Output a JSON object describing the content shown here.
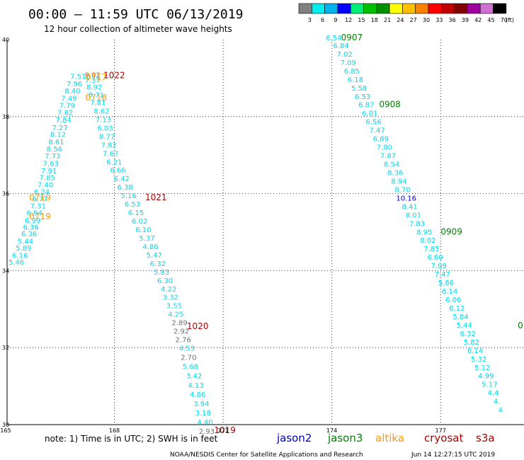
{
  "header": {
    "title": "00:00 – 11:59 UTC 06/13/2019",
    "subtitle": "12 hour collection of altimeter wave heights"
  },
  "legend": {
    "unit": "(ft)",
    "bins": [
      {
        "label": "3",
        "color": "#808080"
      },
      {
        "label": "6",
        "color": "#00eeee"
      },
      {
        "label": "9",
        "color": "#00b2ee"
      },
      {
        "label": "12",
        "color": "#0000ff"
      },
      {
        "label": "15",
        "color": "#00ee76"
      },
      {
        "label": "18",
        "color": "#00c000"
      },
      {
        "label": "21",
        "color": "#009000"
      },
      {
        "label": "24",
        "color": "#ffff00"
      },
      {
        "label": "27",
        "color": "#ffc000"
      },
      {
        "label": "30",
        "color": "#ff8000"
      },
      {
        "label": "33",
        "color": "#ff0000"
      },
      {
        "label": "36",
        "color": "#c00000"
      },
      {
        "label": "39",
        "color": "#800000"
      },
      {
        "label": "42",
        "color": "#a000a0"
      },
      {
        "label": "45",
        "color": "#d070d0"
      },
      {
        "label": "70",
        "color": "#000000"
      }
    ]
  },
  "map": {
    "lon_ticks": [
      "165",
      "168",
      "171",
      "174",
      "177"
    ],
    "lat_ticks": [
      "40",
      "38",
      "36",
      "34",
      "32",
      "30"
    ],
    "lon_range": [
      165,
      179.2
    ],
    "lat_range": [
      30,
      40.1
    ]
  },
  "colors": {
    "cyan": "#00d8e8",
    "blue": "#0000cc",
    "gray": "#707070",
    "jason2": "#0000cc",
    "jason3": "#008000",
    "altika": "#ff9900",
    "cryosat": "#aa0000",
    "s3a": "#aa0000"
  },
  "tracks": [
    {
      "id": "track-1",
      "points": [
        {
          "lon": 165.3,
          "lat": 34.15,
          "text": "5.46",
          "c": "cyan"
        },
        {
          "lon": 165.4,
          "lat": 34.33,
          "text": "6.16",
          "c": "cyan"
        },
        {
          "lon": 165.5,
          "lat": 34.52,
          "text": "5.89",
          "c": "cyan"
        },
        {
          "lon": 165.55,
          "lat": 34.7,
          "text": "5.44",
          "c": "cyan"
        },
        {
          "lon": 165.65,
          "lat": 34.89,
          "text": "6.36",
          "c": "cyan"
        },
        {
          "lon": 165.7,
          "lat": 35.06,
          "text": "6.36",
          "c": "cyan"
        },
        {
          "lon": 165.75,
          "lat": 35.24,
          "text": "6.99",
          "c": "cyan"
        },
        {
          "lon": 165.8,
          "lat": 35.43,
          "text": "6.94",
          "c": "cyan"
        },
        {
          "lon": 165.9,
          "lat": 35.62,
          "text": "7.31",
          "c": "cyan"
        },
        {
          "lon": 165.95,
          "lat": 35.8,
          "text": "6.77",
          "c": "cyan"
        },
        {
          "lon": 166.0,
          "lat": 35.98,
          "text": "6.24",
          "c": "cyan"
        },
        {
          "lon": 166.1,
          "lat": 36.17,
          "text": "7.40",
          "c": "cyan"
        },
        {
          "lon": 166.15,
          "lat": 36.35,
          "text": "7.85",
          "c": "cyan"
        },
        {
          "lon": 166.2,
          "lat": 36.53,
          "text": "7.91",
          "c": "cyan"
        },
        {
          "lon": 166.25,
          "lat": 36.72,
          "text": "7.63",
          "c": "cyan"
        },
        {
          "lon": 166.3,
          "lat": 36.91,
          "text": "7.73",
          "c": "cyan"
        },
        {
          "lon": 166.35,
          "lat": 37.1,
          "text": "8.56",
          "c": "cyan"
        },
        {
          "lon": 166.4,
          "lat": 37.28,
          "text": "8.61",
          "c": "cyan"
        },
        {
          "lon": 166.45,
          "lat": 37.47,
          "text": "8.12",
          "c": "cyan"
        },
        {
          "lon": 166.5,
          "lat": 37.65,
          "text": "7.27",
          "c": "cyan"
        },
        {
          "lon": 166.6,
          "lat": 37.85,
          "text": "7.84",
          "c": "cyan"
        },
        {
          "lon": 166.65,
          "lat": 38.04,
          "text": "7.82",
          "c": "cyan"
        },
        {
          "lon": 166.7,
          "lat": 38.23,
          "text": "7.79",
          "c": "cyan"
        },
        {
          "lon": 166.75,
          "lat": 38.41,
          "text": "7.49",
          "c": "cyan"
        },
        {
          "lon": 166.85,
          "lat": 38.6,
          "text": "8.40",
          "c": "cyan"
        },
        {
          "lon": 166.9,
          "lat": 38.79,
          "text": "7.96",
          "c": "cyan"
        },
        {
          "lon": 167.0,
          "lat": 38.98,
          "text": "7.51",
          "c": "cyan"
        },
        {
          "lon": 167.4,
          "lat": 39.02,
          "text": "9.02",
          "c": "gray"
        }
      ]
    },
    {
      "id": "track-2",
      "points": [
        {
          "lon": 167.4,
          "lat": 38.88,
          "text": "7.37",
          "c": "cyan"
        },
        {
          "lon": 167.45,
          "lat": 38.7,
          "text": "8.92",
          "c": "cyan"
        },
        {
          "lon": 167.5,
          "lat": 38.5,
          "text": "8.71",
          "c": "cyan"
        },
        {
          "lon": 167.55,
          "lat": 38.3,
          "text": "7.81",
          "c": "cyan"
        },
        {
          "lon": 167.65,
          "lat": 38.08,
          "text": "8.62",
          "c": "cyan"
        },
        {
          "lon": 167.7,
          "lat": 37.86,
          "text": "7.13",
          "c": "cyan"
        },
        {
          "lon": 167.75,
          "lat": 37.64,
          "text": "6.03",
          "c": "cyan"
        },
        {
          "lon": 167.8,
          "lat": 37.42,
          "text": "8.77",
          "c": "cyan"
        },
        {
          "lon": 167.85,
          "lat": 37.2,
          "text": "7.82",
          "c": "cyan"
        },
        {
          "lon": 167.9,
          "lat": 36.98,
          "text": "7.67",
          "c": "cyan"
        },
        {
          "lon": 168.0,
          "lat": 36.76,
          "text": "6.21",
          "c": "cyan"
        },
        {
          "lon": 168.1,
          "lat": 36.54,
          "text": "6.66",
          "c": "cyan"
        },
        {
          "lon": 168.2,
          "lat": 36.32,
          "text": "6.42",
          "c": "cyan"
        },
        {
          "lon": 168.3,
          "lat": 36.1,
          "text": "6.38",
          "c": "cyan"
        },
        {
          "lon": 168.4,
          "lat": 35.88,
          "text": "5.16",
          "c": "cyan"
        },
        {
          "lon": 168.5,
          "lat": 35.66,
          "text": "6.53",
          "c": "cyan"
        },
        {
          "lon": 168.6,
          "lat": 35.44,
          "text": "6.15",
          "c": "cyan"
        },
        {
          "lon": 168.7,
          "lat": 35.22,
          "text": "6.02",
          "c": "cyan"
        },
        {
          "lon": 168.8,
          "lat": 35.0,
          "text": "6.10",
          "c": "cyan"
        },
        {
          "lon": 168.9,
          "lat": 34.78,
          "text": "5.37",
          "c": "cyan"
        },
        {
          "lon": 169.0,
          "lat": 34.56,
          "text": "4.86",
          "c": "cyan"
        },
        {
          "lon": 169.1,
          "lat": 34.34,
          "text": "5.47",
          "c": "cyan"
        },
        {
          "lon": 169.2,
          "lat": 34.12,
          "text": "6.32",
          "c": "cyan"
        },
        {
          "lon": 169.3,
          "lat": 33.9,
          "text": "5.83",
          "c": "cyan"
        },
        {
          "lon": 169.4,
          "lat": 33.68,
          "text": "6.30",
          "c": "cyan"
        },
        {
          "lon": 169.5,
          "lat": 33.46,
          "text": "4.22",
          "c": "cyan"
        },
        {
          "lon": 169.55,
          "lat": 33.24,
          "text": "3.32",
          "c": "cyan"
        },
        {
          "lon": 169.65,
          "lat": 33.02,
          "text": "3.55",
          "c": "cyan"
        },
        {
          "lon": 169.7,
          "lat": 32.8,
          "text": "4.25",
          "c": "cyan"
        },
        {
          "lon": 169.8,
          "lat": 32.58,
          "text": "2.89",
          "c": "gray"
        },
        {
          "lon": 169.85,
          "lat": 32.36,
          "text": "2.92",
          "c": "gray"
        },
        {
          "lon": 169.9,
          "lat": 32.14,
          "text": "2.76",
          "c": "gray"
        },
        {
          "lon": 170.0,
          "lat": 31.92,
          "text": "4.53",
          "c": "cyan"
        },
        {
          "lon": 170.05,
          "lat": 31.68,
          "text": "2.70",
          "c": "gray"
        },
        {
          "lon": 170.1,
          "lat": 31.44,
          "text": "5.68",
          "c": "cyan"
        },
        {
          "lon": 170.2,
          "lat": 31.2,
          "text": "3.42",
          "c": "cyan"
        },
        {
          "lon": 170.25,
          "lat": 30.96,
          "text": "4.13",
          "c": "cyan"
        },
        {
          "lon": 170.3,
          "lat": 30.72,
          "text": "4.86",
          "c": "cyan"
        },
        {
          "lon": 170.4,
          "lat": 30.48,
          "text": "3.94",
          "c": "cyan"
        },
        {
          "lon": 170.45,
          "lat": 30.24,
          "text": "3.18",
          "c": "cyan"
        },
        {
          "lon": 170.5,
          "lat": 30.0,
          "text": "4.40",
          "c": "cyan"
        },
        {
          "lon": 170.55,
          "lat": 29.76,
          "text": "2.93",
          "c": "gray"
        }
      ]
    },
    {
      "id": "track-3",
      "points": [
        {
          "lon": 174.05,
          "lat": 39.98,
          "text": "6.54",
          "c": "cyan"
        },
        {
          "lon": 174.25,
          "lat": 39.78,
          "text": "6.84",
          "c": "cyan"
        },
        {
          "lon": 174.35,
          "lat": 39.56,
          "text": "7.02",
          "c": "cyan"
        },
        {
          "lon": 174.45,
          "lat": 39.34,
          "text": "7.09",
          "c": "cyan"
        },
        {
          "lon": 174.55,
          "lat": 39.12,
          "text": "6.85",
          "c": "cyan"
        },
        {
          "lon": 174.65,
          "lat": 38.9,
          "text": "6.18",
          "c": "cyan"
        },
        {
          "lon": 174.75,
          "lat": 38.68,
          "text": "5.58",
          "c": "cyan"
        },
        {
          "lon": 174.85,
          "lat": 38.46,
          "text": "6.53",
          "c": "cyan"
        },
        {
          "lon": 174.95,
          "lat": 38.24,
          "text": "6.87",
          "c": "cyan"
        },
        {
          "lon": 175.05,
          "lat": 38.02,
          "text": "6.01",
          "c": "cyan"
        },
        {
          "lon": 175.15,
          "lat": 37.8,
          "text": "6.56",
          "c": "cyan"
        },
        {
          "lon": 175.25,
          "lat": 37.58,
          "text": "7.47",
          "c": "cyan"
        },
        {
          "lon": 175.35,
          "lat": 37.36,
          "text": "6.89",
          "c": "cyan"
        },
        {
          "lon": 175.45,
          "lat": 37.14,
          "text": "7.80",
          "c": "cyan"
        },
        {
          "lon": 175.55,
          "lat": 36.92,
          "text": "7.87",
          "c": "cyan"
        },
        {
          "lon": 175.65,
          "lat": 36.7,
          "text": "8.54",
          "c": "cyan"
        },
        {
          "lon": 175.75,
          "lat": 36.48,
          "text": "8.36",
          "c": "cyan"
        },
        {
          "lon": 175.85,
          "lat": 36.26,
          "text": "8.94",
          "c": "cyan"
        },
        {
          "lon": 175.95,
          "lat": 36.04,
          "text": "8.70",
          "c": "cyan"
        },
        {
          "lon": 176.05,
          "lat": 35.82,
          "text": "10.16",
          "c": "blue"
        },
        {
          "lon": 176.15,
          "lat": 35.6,
          "text": "8.41",
          "c": "cyan"
        },
        {
          "lon": 176.25,
          "lat": 35.38,
          "text": "8.01",
          "c": "cyan"
        },
        {
          "lon": 176.35,
          "lat": 35.16,
          "text": "7.83",
          "c": "cyan"
        },
        {
          "lon": 176.55,
          "lat": 34.94,
          "text": "8.95",
          "c": "cyan"
        },
        {
          "lon": 176.65,
          "lat": 34.72,
          "text": "8.02",
          "c": "cyan"
        },
        {
          "lon": 176.75,
          "lat": 34.5,
          "text": "7.85",
          "c": "cyan"
        },
        {
          "lon": 176.85,
          "lat": 34.28,
          "text": "6.60",
          "c": "cyan"
        },
        {
          "lon": 176.95,
          "lat": 34.06,
          "text": "7.09",
          "c": "cyan"
        },
        {
          "lon": 177.05,
          "lat": 33.84,
          "text": "7.47",
          "c": "cyan"
        },
        {
          "lon": 177.15,
          "lat": 33.62,
          "text": "5.86",
          "c": "cyan"
        },
        {
          "lon": 177.25,
          "lat": 33.4,
          "text": "6.14",
          "c": "cyan"
        },
        {
          "lon": 177.35,
          "lat": 33.18,
          "text": "6.06",
          "c": "cyan"
        },
        {
          "lon": 177.45,
          "lat": 32.96,
          "text": "6.12",
          "c": "cyan"
        },
        {
          "lon": 177.55,
          "lat": 32.74,
          "text": "5.84",
          "c": "cyan"
        },
        {
          "lon": 177.65,
          "lat": 32.52,
          "text": "5.44",
          "c": "cyan"
        },
        {
          "lon": 177.75,
          "lat": 32.3,
          "text": "6.32",
          "c": "cyan"
        },
        {
          "lon": 177.85,
          "lat": 32.08,
          "text": "5.82",
          "c": "cyan"
        },
        {
          "lon": 177.95,
          "lat": 31.86,
          "text": "6.14",
          "c": "cyan"
        },
        {
          "lon": 178.05,
          "lat": 31.64,
          "text": "5.32",
          "c": "cyan"
        },
        {
          "lon": 178.15,
          "lat": 31.42,
          "text": "5.12",
          "c": "cyan"
        },
        {
          "lon": 178.25,
          "lat": 31.2,
          "text": "4.99",
          "c": "cyan"
        },
        {
          "lon": 178.35,
          "lat": 30.98,
          "text": "5.17",
          "c": "cyan"
        },
        {
          "lon": 178.45,
          "lat": 30.76,
          "text": "4.4",
          "c": "cyan"
        },
        {
          "lon": 178.55,
          "lat": 30.54,
          "text": "4.",
          "c": "cyan"
        },
        {
          "lon": 178.65,
          "lat": 30.32,
          "text": "4",
          "c": "cyan"
        }
      ]
    }
  ],
  "pass_labels": [
    {
      "lon": 168.0,
      "lat": 39.0,
      "text": "1022",
      "c": "cryosat"
    },
    {
      "lon": 167.5,
      "lat": 38.95,
      "text": "0717",
      "c": "altika"
    },
    {
      "lon": 167.5,
      "lat": 38.42,
      "text": "0718",
      "c": "altika"
    },
    {
      "lon": 169.15,
      "lat": 35.83,
      "text": "1021",
      "c": "cryosat"
    },
    {
      "lon": 165.95,
      "lat": 35.82,
      "text": "0719",
      "c": "altika"
    },
    {
      "lon": 165.95,
      "lat": 35.33,
      "text": "0719",
      "c": "altika"
    },
    {
      "lon": 170.3,
      "lat": 32.48,
      "text": "1020",
      "c": "cryosat"
    },
    {
      "lon": 171.05,
      "lat": 29.78,
      "text": "1019",
      "c": "cryosat"
    },
    {
      "lon": 174.55,
      "lat": 39.98,
      "text": "0907",
      "c": "jason3"
    },
    {
      "lon": 175.6,
      "lat": 38.24,
      "text": "0908",
      "c": "jason3"
    },
    {
      "lon": 177.3,
      "lat": 34.94,
      "text": "0909",
      "c": "jason3"
    },
    {
      "lon": 179.2,
      "lat": 32.5,
      "text": "0",
      "c": "jason3"
    }
  ],
  "note": "note:  1) Time is in UTC;  2) SWH is in feet",
  "satellites": [
    {
      "name": "jason2",
      "c": "jason2"
    },
    {
      "name": "jason3",
      "c": "jason3"
    },
    {
      "name": "altika",
      "c": "altika"
    },
    {
      "name": "cryosat",
      "c": "cryosat"
    },
    {
      "name": "s3a",
      "c": "s3a"
    }
  ],
  "footer": {
    "credit": "NOAA/NESDIS Center for Satellite Applications and Research",
    "timestamp": "Jun 14 12:27:15 UTC 2019"
  }
}
